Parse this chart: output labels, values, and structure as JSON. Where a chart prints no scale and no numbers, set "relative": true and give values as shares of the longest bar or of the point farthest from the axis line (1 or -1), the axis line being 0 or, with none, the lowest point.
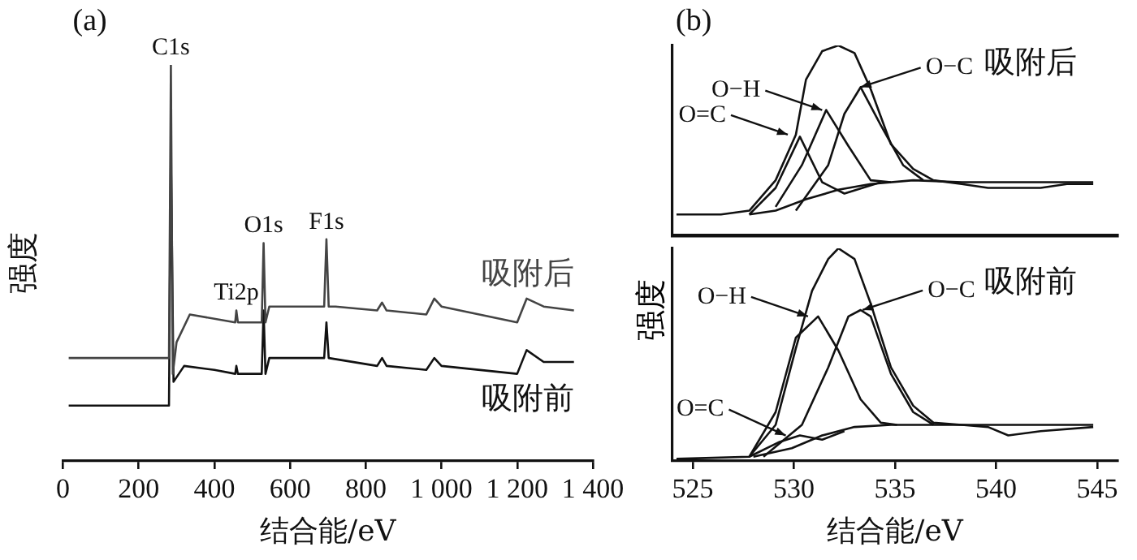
{
  "chart_data": [
    {
      "type": "line",
      "title": "(a)",
      "xlabel": "结合能/eV",
      "ylabel": "强度",
      "relative": true,
      "xlim": [
        0,
        1400
      ],
      "xticks": [
        0,
        200,
        400,
        600,
        800,
        {
          "value": 1000,
          "label": "1 000"
        },
        {
          "value": 1200,
          "label": "1 200"
        },
        {
          "value": 1400,
          "label": "1 400"
        }
      ],
      "annotations": [
        {
          "text": "C1s",
          "x": 285,
          "y": 1.0
        },
        {
          "text": "Ti2p",
          "x": 458,
          "y": 0.38
        },
        {
          "text": "O1s",
          "x": 530,
          "y": 0.55
        },
        {
          "text": "F1s",
          "x": 696,
          "y": 0.56
        }
      ],
      "series": [
        {
          "name": "吸附后",
          "color": "#444444",
          "x": [
            15,
            280,
            285,
            290,
            300,
            335,
            455,
            458,
            462,
            525,
            530,
            535,
            545,
            690,
            696,
            702,
            720,
            830,
            843,
            855,
            960,
            981,
            1000,
            1200,
            1225,
            1270,
            1350
          ],
          "values": [
            0.26,
            0.26,
            1.0,
            0.22,
            0.3,
            0.37,
            0.35,
            0.38,
            0.35,
            0.35,
            0.55,
            0.35,
            0.39,
            0.39,
            0.56,
            0.39,
            0.39,
            0.38,
            0.4,
            0.38,
            0.37,
            0.41,
            0.39,
            0.35,
            0.41,
            0.39,
            0.38
          ]
        },
        {
          "name": "吸附前",
          "color": "#111111",
          "x": [
            15,
            280,
            285,
            292,
            320,
            400,
            455,
            458,
            462,
            525,
            530,
            535,
            545,
            690,
            696,
            702,
            830,
            843,
            855,
            960,
            981,
            1000,
            1200,
            1225,
            1270,
            1350
          ],
          "values": [
            0.14,
            0.14,
            0.78,
            0.2,
            0.24,
            0.23,
            0.22,
            0.24,
            0.22,
            0.22,
            0.38,
            0.22,
            0.26,
            0.26,
            0.35,
            0.26,
            0.24,
            0.26,
            0.24,
            0.23,
            0.26,
            0.24,
            0.22,
            0.28,
            0.25,
            0.25
          ]
        }
      ]
    },
    {
      "type": "line",
      "title": "(b)",
      "relative": true,
      "xlim": [
        524,
        546
      ],
      "annotations": [
        {
          "text": "O=C",
          "x": 529.7,
          "y": 0.53
        },
        {
          "text": "O−H",
          "x": 531.4,
          "y": 0.66
        },
        {
          "text": "O−C",
          "x": 533.3,
          "y": 0.78
        },
        "吸附后"
      ],
      "series": [
        {
          "color": "#111111",
          "x": [
            524.2,
            526.4,
            527.8,
            529.1,
            530.1,
            530.6,
            531.4,
            532.2,
            533.0,
            533.8,
            534.8,
            535.9,
            536.9,
            538.3,
            539.6,
            540.9,
            542.2,
            543.5,
            544.8
          ],
          "values": [
            0.11,
            0.11,
            0.13,
            0.29,
            0.53,
            0.82,
            0.97,
            1.0,
            0.96,
            0.77,
            0.48,
            0.35,
            0.29,
            0.27,
            0.25,
            0.25,
            0.25,
            0.27,
            0.27
          ]
        },
        {
          "color": "#111111",
          "x": [
            527.8,
            529.1,
            530.6,
            532.2,
            533.8,
            535.9,
            538.3,
            544.8
          ],
          "values": [
            0.11,
            0.13,
            0.19,
            0.24,
            0.27,
            0.29,
            0.28,
            0.28
          ]
        },
        {
          "color": "#111111",
          "x": [
            527.8,
            529.1,
            530.3,
            531.4,
            532.5,
            534.3
          ],
          "values": [
            0.11,
            0.25,
            0.52,
            0.28,
            0.22,
            0.28
          ]
        },
        {
          "color": "#111111",
          "x": [
            529.1,
            530.4,
            531.6,
            532.7,
            533.8,
            534.8
          ],
          "values": [
            0.15,
            0.37,
            0.66,
            0.47,
            0.29,
            0.28
          ]
        },
        {
          "color": "#111111",
          "x": [
            530.1,
            531.7,
            532.5,
            533.3,
            534.3,
            535.4,
            536.4
          ],
          "values": [
            0.13,
            0.37,
            0.64,
            0.78,
            0.58,
            0.37,
            0.29
          ]
        }
      ]
    },
    {
      "type": "line",
      "xlabel": "结合能/eV",
      "ylabel": "强度",
      "relative": true,
      "xlim": [
        524,
        546
      ],
      "xticks": [
        525,
        530,
        535,
        540,
        545
      ],
      "annotations": [
        {
          "text": "O−H",
          "x": 530.7,
          "y": 0.68
        },
        {
          "text": "O−C",
          "x": 533.4,
          "y": 0.71
        },
        {
          "text": "O=C",
          "x": 529.6,
          "y": 0.12
        },
        "吸附前"
      ],
      "series": [
        {
          "color": "#111111",
          "x": [
            524.2,
            527.8,
            529.1,
            530.1,
            530.9,
            531.7,
            532.2,
            533.0,
            533.8,
            534.8,
            535.9,
            536.9,
            538.3,
            539.6,
            540.6,
            542.2,
            544.8
          ],
          "values": [
            0.01,
            0.02,
            0.17,
            0.53,
            0.8,
            0.95,
            1.0,
            0.95,
            0.74,
            0.44,
            0.26,
            0.18,
            0.17,
            0.16,
            0.12,
            0.14,
            0.16
          ]
        },
        {
          "color": "#111111",
          "x": [
            528.0,
            529.9,
            531.4,
            533.0,
            534.8,
            538.3,
            544.8
          ],
          "values": [
            0.02,
            0.06,
            0.12,
            0.16,
            0.17,
            0.17,
            0.17
          ]
        },
        {
          "color": "#111111",
          "x": [
            527.8,
            529.3,
            530.3,
            531.4,
            532.5
          ],
          "values": [
            0.02,
            0.09,
            0.12,
            0.1,
            0.14
          ]
        },
        {
          "color": "#111111",
          "x": [
            527.8,
            529.1,
            530.1,
            531.2,
            532.2,
            533.3,
            534.3,
            535.1
          ],
          "values": [
            0.02,
            0.23,
            0.58,
            0.68,
            0.52,
            0.29,
            0.18,
            0.17
          ]
        },
        {
          "color": "#111111",
          "x": [
            528.5,
            530.4,
            531.7,
            532.7,
            533.3,
            533.8,
            534.8,
            535.9,
            536.9
          ],
          "values": [
            0.02,
            0.17,
            0.44,
            0.68,
            0.71,
            0.68,
            0.41,
            0.23,
            0.17
          ]
        }
      ]
    }
  ]
}
